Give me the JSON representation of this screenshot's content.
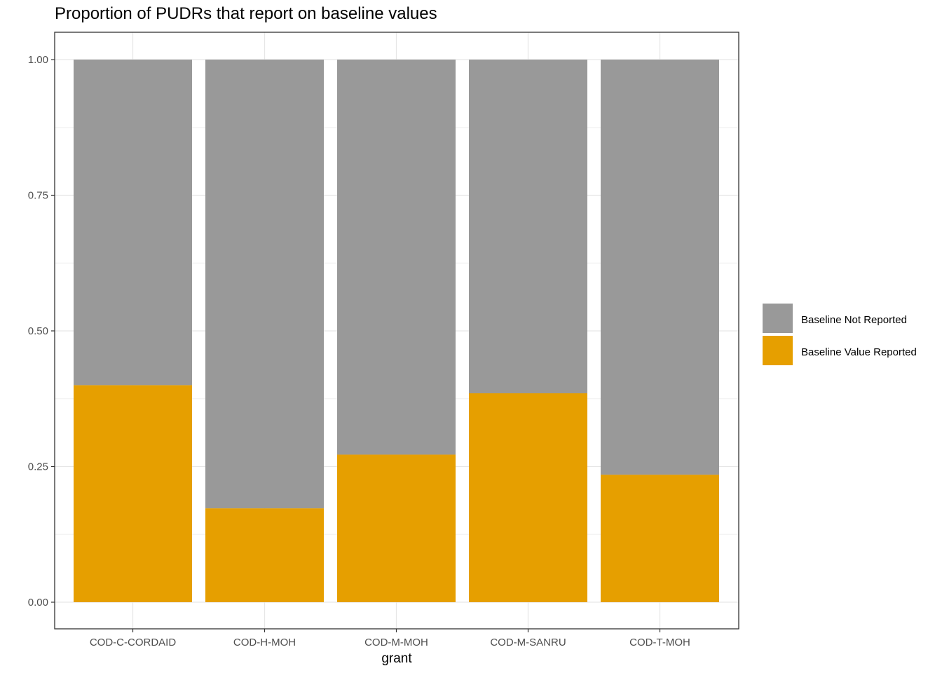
{
  "chart_data": {
    "type": "bar",
    "stacked": true,
    "title": "Proportion of PUDRs that report on baseline values",
    "xlabel": "grant",
    "ylabel": "",
    "ylim": [
      0,
      1
    ],
    "yticks": [
      "0.00",
      "0.25",
      "0.50",
      "0.75",
      "1.00"
    ],
    "categories": [
      "COD-C-CORDAID",
      "COD-H-MOH",
      "COD-M-MOH",
      "COD-M-SANRU",
      "COD-T-MOH"
    ],
    "series": [
      {
        "name": "Baseline Value Reported",
        "color": "#E69F00",
        "values": [
          0.4,
          0.173,
          0.272,
          0.385,
          0.235
        ]
      },
      {
        "name": "Baseline Not Reported",
        "color": "#999999",
        "values": [
          0.6,
          0.827,
          0.728,
          0.615,
          0.765
        ]
      }
    ],
    "legend": {
      "placement": "right",
      "entries": [
        "Baseline Not Reported",
        "Baseline Value Reported"
      ]
    },
    "grid": true
  }
}
